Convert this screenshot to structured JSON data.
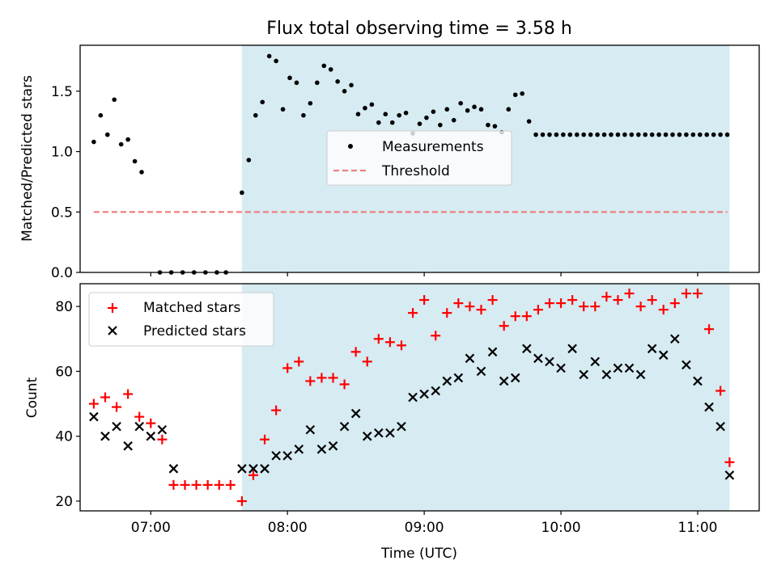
{
  "chart_data": [
    {
      "type": "scatter",
      "title": "Flux total observing time = 3.58 h",
      "ylabel": "Matched/Predicted stars",
      "xlabel": "",
      "xlim": [
        "06:29",
        "11:27"
      ],
      "ylim": [
        0,
        1.88
      ],
      "yticks": [
        0.0,
        0.5,
        1.0,
        1.5
      ],
      "ytick_labels": [
        "0.0",
        "0.5",
        "1.0",
        "1.5"
      ],
      "xticks": [
        "07:00",
        "08:00",
        "09:00",
        "10:00",
        "11:00"
      ],
      "shaded_span": [
        "07:40",
        "11:14"
      ],
      "threshold": {
        "label": "Threshold",
        "value": 0.5,
        "x": [
          "06:35",
          "11:13"
        ],
        "color": "#f08080"
      },
      "legend_position": "center",
      "series": [
        {
          "name": "Measurements",
          "marker": "dot",
          "color": "#000000",
          "x": [
            "06:35",
            "06:38",
            "06:41",
            "06:44",
            "06:47",
            "06:50",
            "06:53",
            "06:56",
            "07:04",
            "07:09",
            "07:14",
            "07:19",
            "07:24",
            "07:29",
            "07:33",
            "07:40",
            "07:43",
            "07:46",
            "07:49",
            "07:52",
            "07:55",
            "07:58",
            "08:01",
            "08:04",
            "08:07",
            "08:10",
            "08:13",
            "08:16",
            "08:19",
            "08:22",
            "08:25",
            "08:28",
            "08:31",
            "08:34",
            "08:37",
            "08:40",
            "08:43",
            "08:46",
            "08:49",
            "08:52",
            "08:55",
            "08:58",
            "09:01",
            "09:04",
            "09:07",
            "09:10",
            "09:13",
            "09:16",
            "09:19",
            "09:22",
            "09:25",
            "09:28",
            "09:31",
            "09:34",
            "09:37",
            "09:40",
            "09:43",
            "09:46",
            "09:49",
            "09:52",
            "09:55",
            "09:58",
            "10:01",
            "10:04",
            "10:07",
            "10:10",
            "10:13",
            "10:16",
            "10:19",
            "10:22",
            "10:25",
            "10:28",
            "10:31",
            "10:34",
            "10:37",
            "10:40",
            "10:43",
            "10:46",
            "10:49",
            "10:52",
            "10:55",
            "10:58",
            "11:01",
            "11:04",
            "11:07",
            "11:10",
            "11:13"
          ],
          "y": [
            1.08,
            1.3,
            1.14,
            1.43,
            1.06,
            1.1,
            0.92,
            0.83,
            0.0,
            0.0,
            0.0,
            0.0,
            0.0,
            0.0,
            0.0,
            0.66,
            0.93,
            1.3,
            1.41,
            1.79,
            1.75,
            1.35,
            1.61,
            1.57,
            1.3,
            1.4,
            1.57,
            1.71,
            1.68,
            1.58,
            1.5,
            1.55,
            1.31,
            1.36,
            1.39,
            1.24,
            1.31,
            1.24,
            1.3,
            1.32,
            1.15,
            1.23,
            1.28,
            1.33,
            1.22,
            1.35,
            1.26,
            1.4,
            1.34,
            1.37,
            1.35,
            1.22,
            1.21,
            1.16,
            1.35,
            1.47,
            1.48,
            1.25,
            1.14,
            1.14,
            1.14,
            1.14,
            1.14,
            1.14,
            1.14,
            1.14,
            1.14,
            1.14,
            1.14,
            1.14,
            1.14,
            1.14,
            1.14,
            1.14,
            1.14,
            1.14,
            1.14,
            1.14,
            1.14,
            1.14,
            1.14,
            1.14,
            1.14,
            1.14,
            1.14,
            1.14,
            1.14
          ]
        }
      ]
    },
    {
      "type": "scatter",
      "title": "",
      "ylabel": "Count",
      "xlabel": "Time (UTC)",
      "xlim": [
        "06:29",
        "11:27"
      ],
      "ylim": [
        17,
        87
      ],
      "yticks": [
        20,
        40,
        60,
        80
      ],
      "ytick_labels": [
        "20",
        "40",
        "60",
        "80"
      ],
      "xticks": [
        "07:00",
        "08:00",
        "09:00",
        "10:00",
        "11:00"
      ],
      "xtick_labels": [
        "07:00",
        "08:00",
        "09:00",
        "10:00",
        "11:00"
      ],
      "shaded_span": [
        "07:40",
        "11:14"
      ],
      "legend_position": "upper left",
      "series": [
        {
          "name": "Matched stars",
          "marker": "plus",
          "color": "#ff0000",
          "x": [
            "06:35",
            "06:40",
            "06:45",
            "06:50",
            "06:55",
            "07:00",
            "07:05",
            "07:10",
            "07:15",
            "07:20",
            "07:25",
            "07:30",
            "07:35",
            "07:40",
            "07:45",
            "07:50",
            "07:55",
            "08:00",
            "08:05",
            "08:10",
            "08:15",
            "08:20",
            "08:25",
            "08:30",
            "08:35",
            "08:40",
            "08:45",
            "08:50",
            "08:55",
            "09:00",
            "09:05",
            "09:10",
            "09:15",
            "09:20",
            "09:25",
            "09:30",
            "09:35",
            "09:40",
            "09:45",
            "09:50",
            "09:55",
            "10:00",
            "10:05",
            "10:10",
            "10:15",
            "10:20",
            "10:25",
            "10:30",
            "10:35",
            "10:40",
            "10:45",
            "10:50",
            "10:55",
            "11:00",
            "11:05",
            "11:10",
            "11:14"
          ],
          "y": [
            50,
            52,
            49,
            53,
            46,
            44,
            39,
            25,
            25,
            25,
            25,
            25,
            25,
            20,
            28,
            39,
            48,
            61,
            63,
            57,
            58,
            58,
            56,
            66,
            63,
            70,
            69,
            68,
            78,
            82,
            71,
            78,
            81,
            80,
            79,
            82,
            74,
            77,
            77,
            79,
            81,
            81,
            82,
            80,
            80,
            83,
            82,
            84,
            80,
            82,
            79,
            81,
            84,
            84,
            73,
            54,
            32
          ]
        },
        {
          "name": "Predicted stars",
          "marker": "x",
          "color": "#000000",
          "x": [
            "06:35",
            "06:40",
            "06:45",
            "06:50",
            "06:55",
            "07:00",
            "07:05",
            "07:10",
            "07:40",
            "07:45",
            "07:50",
            "07:55",
            "08:00",
            "08:05",
            "08:10",
            "08:15",
            "08:20",
            "08:25",
            "08:30",
            "08:35",
            "08:40",
            "08:45",
            "08:50",
            "08:55",
            "09:00",
            "09:05",
            "09:10",
            "09:15",
            "09:20",
            "09:25",
            "09:30",
            "09:35",
            "09:40",
            "09:45",
            "09:50",
            "09:55",
            "10:00",
            "10:05",
            "10:10",
            "10:15",
            "10:20",
            "10:25",
            "10:30",
            "10:35",
            "10:40",
            "10:45",
            "10:50",
            "10:55",
            "11:00",
            "11:05",
            "11:10",
            "11:14"
          ],
          "y": [
            46,
            40,
            43,
            37,
            43,
            40,
            42,
            30,
            30,
            30,
            30,
            34,
            34,
            36,
            42,
            36,
            37,
            43,
            47,
            40,
            41,
            41,
            43,
            52,
            53,
            54,
            57,
            58,
            64,
            60,
            66,
            57,
            58,
            67,
            64,
            63,
            61,
            67,
            59,
            63,
            59,
            61,
            61,
            59,
            67,
            65,
            70,
            62,
            57,
            49,
            43,
            28
          ]
        }
      ]
    }
  ]
}
